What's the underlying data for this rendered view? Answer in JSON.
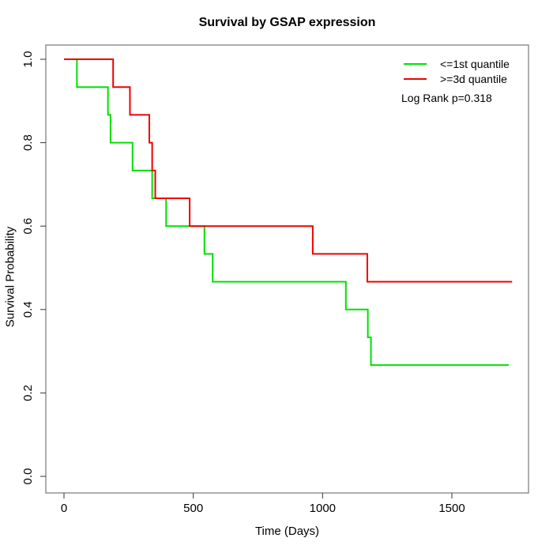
{
  "title": "Survival by GSAP expression",
  "x_axis": {
    "label": "Time (Days)",
    "ticks": [
      "0",
      "500",
      "1000",
      "1500"
    ]
  },
  "y_axis": {
    "label": "Survival Probability",
    "ticks": [
      "0.0",
      "0.2",
      "0.4",
      "0.6",
      "0.8",
      "1.0"
    ]
  },
  "legend": {
    "items": [
      {
        "label": "<=1st quantile",
        "color": "#00E000"
      },
      {
        "label": ">=3d quantile",
        "color": "#F00000"
      }
    ],
    "note": "Log Rank p=0.318"
  },
  "colors": {
    "group_low": "#00E000",
    "group_high": "#F00000",
    "box": "#777777",
    "tick": "#333333"
  },
  "chart_data": {
    "type": "line",
    "subtype": "kaplan-meier-step",
    "title": "Survival by GSAP expression",
    "xlabel": "Time (Days)",
    "ylabel": "Survival Probability",
    "xlim": [
      0,
      1800
    ],
    "ylim": [
      0.0,
      1.0
    ],
    "x_ticks": [
      0,
      500,
      1000,
      1500
    ],
    "y_ticks": [
      0.0,
      0.2,
      0.4,
      0.6,
      0.8,
      1.0
    ],
    "grid": false,
    "legend_position": "top-right",
    "annotation": "Log Rank p=0.318",
    "series": [
      {
        "name": "<=1st quantile",
        "color": "#00E000",
        "end_time": 1720,
        "points": [
          [
            0,
            1.0
          ],
          [
            50,
            0.9333
          ],
          [
            170,
            0.8667
          ],
          [
            180,
            0.8
          ],
          [
            265,
            0.7333
          ],
          [
            341,
            0.6667
          ],
          [
            395,
            0.6
          ],
          [
            543,
            0.5333
          ],
          [
            575,
            0.4667
          ],
          [
            1090,
            0.4
          ],
          [
            1175,
            0.3333
          ],
          [
            1187,
            0.2667
          ]
        ]
      },
      {
        "name": ">=3d quantile",
        "color": "#F00000",
        "end_time": 1733,
        "points": [
          [
            0,
            1.0
          ],
          [
            190,
            0.9333
          ],
          [
            255,
            0.8667
          ],
          [
            330,
            0.8
          ],
          [
            341,
            0.7333
          ],
          [
            353,
            0.6667
          ],
          [
            486,
            0.6
          ],
          [
            962,
            0.5333
          ],
          [
            1173,
            0.4667
          ]
        ]
      }
    ]
  }
}
